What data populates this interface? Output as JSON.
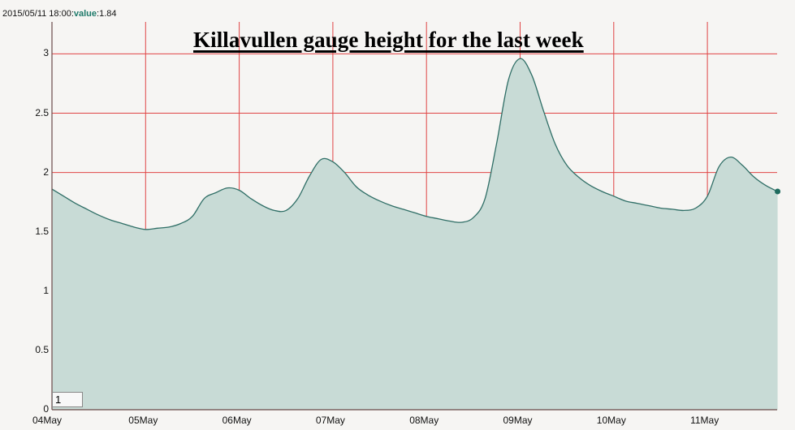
{
  "tooltip": {
    "timestamp": "2015/05/11 18:00:",
    "value_label": "value",
    "value_text": ":1.84"
  },
  "range_input": {
    "value": "1"
  },
  "colors": {
    "grid": "#e04444",
    "fill": "#c8dbd6",
    "line": "#2f6e66",
    "axis": "#6a4a4a",
    "end_marker": "#1e6b5e"
  },
  "chart_data": {
    "type": "area",
    "title": "Killavullen gauge height for the last week",
    "xlabel": "",
    "ylabel": "",
    "ylim": [
      0,
      3.2
    ],
    "yticks": [
      0,
      0.5,
      1,
      1.5,
      2,
      2.5,
      3
    ],
    "ytick_labels": [
      "0",
      "0.5",
      "1",
      "1.5",
      "2",
      "2.5",
      "3"
    ],
    "xtick_labels": [
      "04May",
      "05May",
      "06May",
      "07May",
      "08May",
      "09May",
      "10May",
      "11May"
    ],
    "grid": true,
    "legend": null,
    "x_unit": "days since 2015-05-04 00:00 (3-hour samples)",
    "x": [
      0,
      0.125,
      0.25,
      0.375,
      0.5,
      0.625,
      0.75,
      0.875,
      1,
      1.125,
      1.25,
      1.375,
      1.5,
      1.625,
      1.75,
      1.875,
      2,
      2.125,
      2.25,
      2.375,
      2.5,
      2.625,
      2.75,
      2.875,
      3,
      3.125,
      3.25,
      3.375,
      3.5,
      3.625,
      3.75,
      3.875,
      4,
      4.125,
      4.25,
      4.375,
      4.5,
      4.625,
      4.75,
      4.875,
      5,
      5.125,
      5.25,
      5.375,
      5.5,
      5.625,
      5.75,
      5.875,
      6,
      6.125,
      6.25,
      6.375,
      6.5,
      6.625,
      6.75,
      6.875,
      7,
      7.125,
      7.25,
      7.375,
      7.5,
      7.625,
      7.75
    ],
    "values": [
      1.86,
      1.8,
      1.74,
      1.69,
      1.64,
      1.6,
      1.57,
      1.54,
      1.52,
      1.53,
      1.54,
      1.57,
      1.63,
      1.78,
      1.83,
      1.87,
      1.85,
      1.78,
      1.72,
      1.68,
      1.68,
      1.78,
      1.97,
      2.11,
      2.09,
      2.0,
      1.88,
      1.81,
      1.76,
      1.72,
      1.69,
      1.66,
      1.63,
      1.61,
      1.59,
      1.58,
      1.62,
      1.78,
      2.25,
      2.78,
      2.96,
      2.82,
      2.52,
      2.24,
      2.06,
      1.96,
      1.89,
      1.84,
      1.8,
      1.76,
      1.74,
      1.72,
      1.7,
      1.69,
      1.68,
      1.7,
      1.8,
      2.05,
      2.13,
      2.06,
      1.96,
      1.89,
      1.84
    ],
    "last_point": {
      "time": "2015/05/11 18:00",
      "value": 1.84
    }
  }
}
